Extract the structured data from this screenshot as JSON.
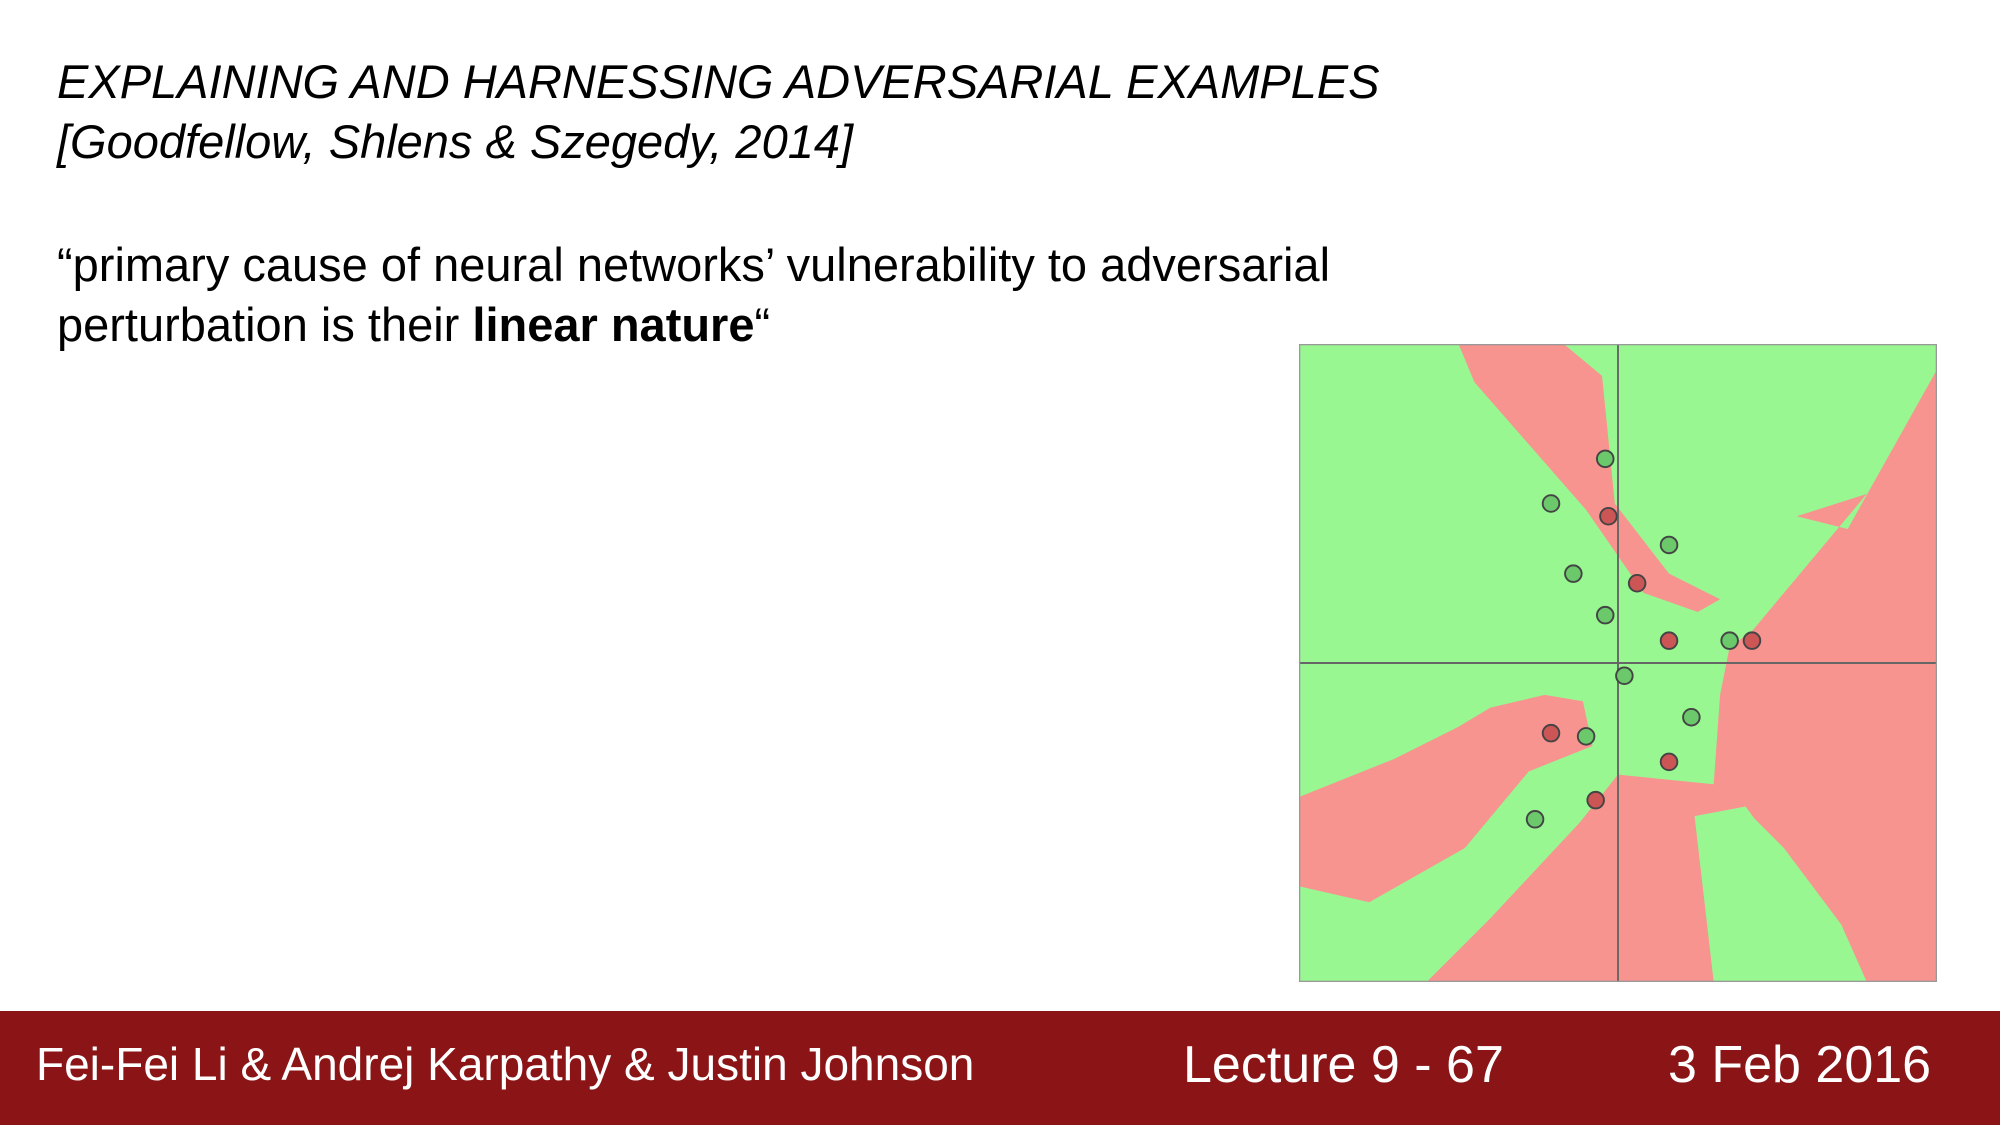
{
  "slide": {
    "title_line1": "EXPLAINING AND HARNESSING ADVERSARIAL EXAMPLES",
    "title_line2": "[Goodfellow, Shlens & Szegedy, 2014]",
    "quote_line1": "“primary cause of neural networks’ vulnerability to adversarial",
    "quote_line2_prefix": "perturbation is their ",
    "quote_bold": "linear nature",
    "quote_suffix": "“"
  },
  "figure": {
    "colors": {
      "green_region": "#98f791",
      "red_region": "#f79490",
      "axis": "#666666",
      "green_point": "#6bc96b",
      "red_point": "#cc5555",
      "point_stroke": "#444444"
    },
    "green_points": [
      [
        -0.04,
        0.64
      ],
      [
        -0.21,
        0.5
      ],
      [
        0.16,
        0.37
      ],
      [
        -0.14,
        0.28
      ],
      [
        -0.04,
        0.15
      ],
      [
        0.35,
        0.07
      ],
      [
        0.02,
        -0.04
      ],
      [
        0.23,
        -0.17
      ],
      [
        -0.1,
        -0.23
      ],
      [
        -0.26,
        -0.49
      ]
    ],
    "red_points": [
      [
        -0.03,
        0.46
      ],
      [
        0.06,
        0.25
      ],
      [
        0.16,
        0.07
      ],
      [
        0.42,
        0.07
      ],
      [
        -0.21,
        -0.22
      ],
      [
        0.16,
        -0.31
      ],
      [
        -0.07,
        -0.43
      ]
    ]
  },
  "footer": {
    "authors": "Fei-Fei Li & Andrej Karpathy & Justin Johnson",
    "lecture": "Lecture 9 - 67",
    "date": "3 Feb 2016"
  }
}
